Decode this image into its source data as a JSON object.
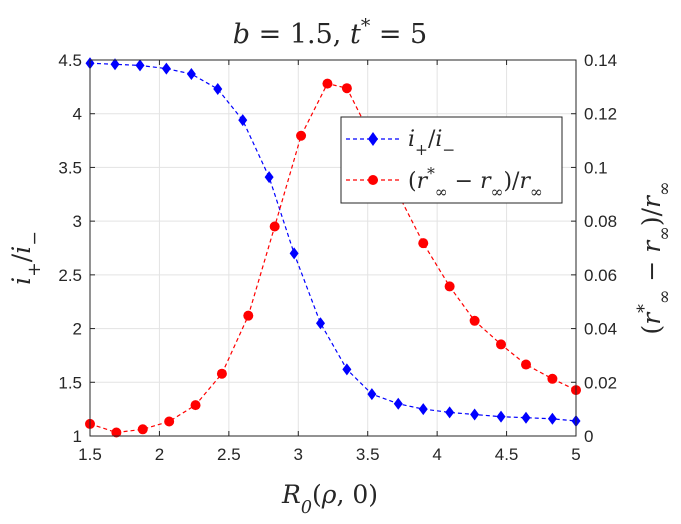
{
  "chart_data": {
    "type": "line",
    "title": "b = 1.5, t* = 5",
    "xlabel": "R₀(ρ, 0)",
    "ylabel_left": "i₊/i₋",
    "ylabel_right": "(r*∞ − r∞)/r∞",
    "xlim": [
      1.5,
      5
    ],
    "ylim_left": [
      1,
      4.5
    ],
    "ylim_right": [
      0,
      0.14
    ],
    "xticks": [
      "1.5",
      "2",
      "2.5",
      "3",
      "3.5",
      "4",
      "4.5",
      "5"
    ],
    "yticks_left": [
      "1",
      "1.5",
      "2",
      "2.5",
      "3",
      "3.5",
      "4",
      "4.5"
    ],
    "yticks_right": [
      "0",
      "0.02",
      "0.04",
      "0.06",
      "0.08",
      "0.1",
      "0.12",
      "0.14"
    ],
    "grid": true,
    "legend_position": "top-right",
    "series": [
      {
        "name": "i₊/i₋",
        "axis": "left",
        "color": "#0000ff",
        "marker": "diamond",
        "line": "dashed",
        "x": [
          1.5,
          1.68,
          1.86,
          2.05,
          2.23,
          2.42,
          2.6,
          2.79,
          2.97,
          3.16,
          3.35,
          3.53,
          3.72,
          3.9,
          4.09,
          4.27,
          4.46,
          4.64,
          4.83,
          5.0
        ],
        "values": [
          4.47,
          4.46,
          4.45,
          4.42,
          4.37,
          4.23,
          3.94,
          3.41,
          2.7,
          2.05,
          1.62,
          1.39,
          1.3,
          1.25,
          1.22,
          1.2,
          1.18,
          1.17,
          1.16,
          1.14
        ]
      },
      {
        "name": "(r*∞ − r∞)/r∞",
        "axis": "right",
        "color": "#ff0000",
        "marker": "circle",
        "line": "dashed",
        "x": [
          1.5,
          1.69,
          1.88,
          2.07,
          2.26,
          2.45,
          2.64,
          2.83,
          3.02,
          3.21,
          3.35,
          3.53,
          3.72,
          3.9,
          4.09,
          4.27,
          4.46,
          4.64,
          4.83,
          5.0
        ],
        "values": [
          0.0045,
          0.0013,
          0.0025,
          0.0054,
          0.0115,
          0.0232,
          0.0448,
          0.078,
          0.1118,
          0.1312,
          0.1295,
          0.111,
          0.09,
          0.0718,
          0.0557,
          0.0429,
          0.0341,
          0.0266,
          0.0213,
          0.0171
        ]
      }
    ]
  }
}
